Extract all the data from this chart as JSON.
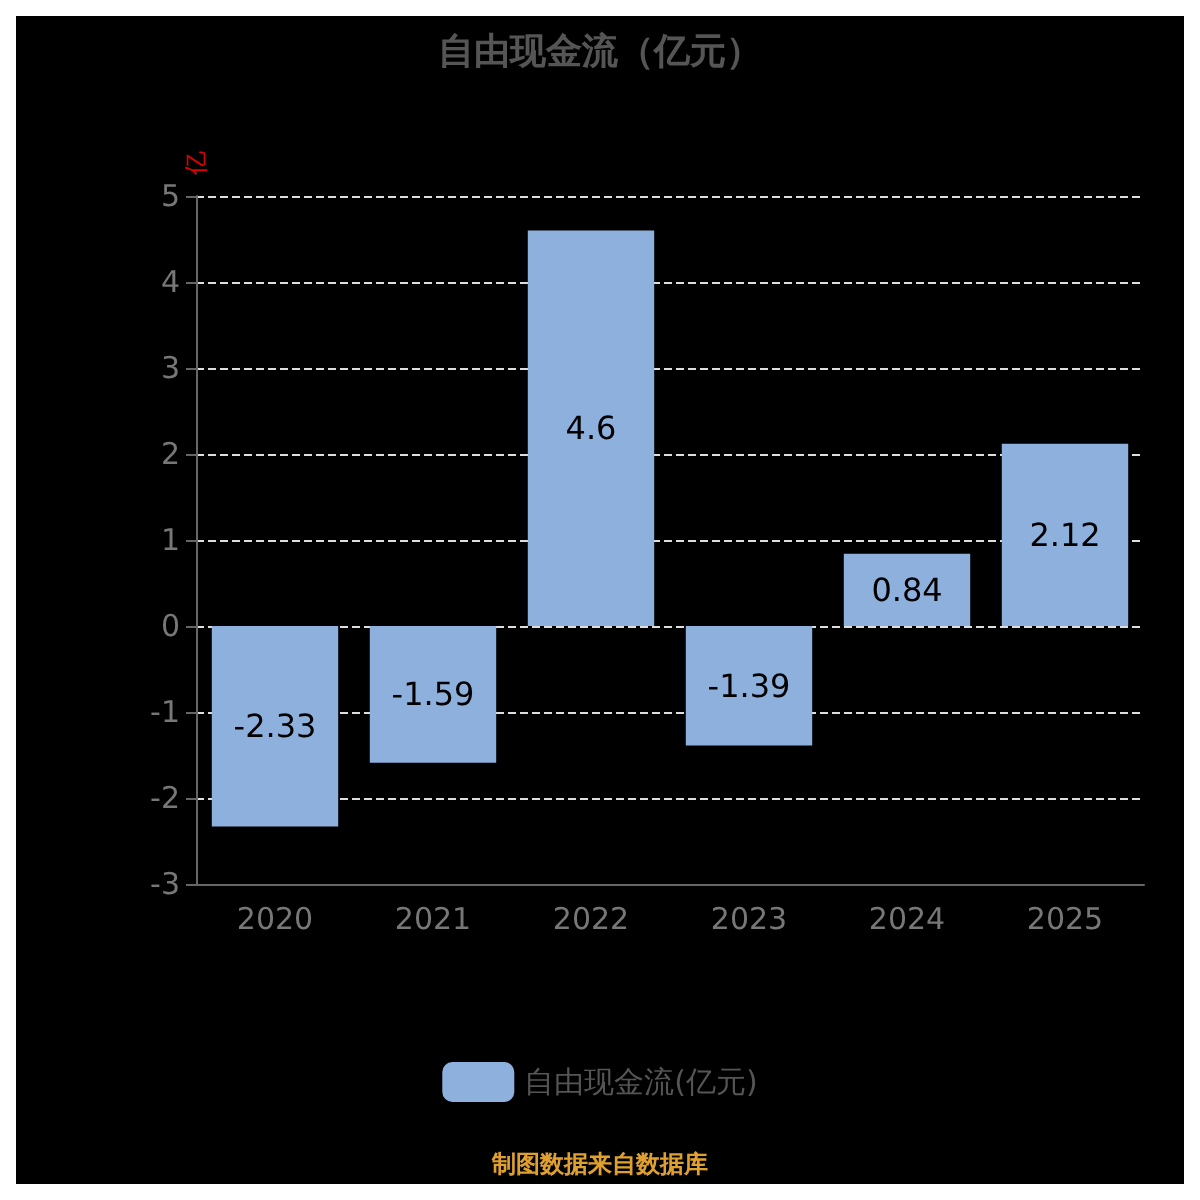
{
  "chart_data": {
    "type": "bar",
    "title": "自由现金流（亿元）",
    "ylabel": "亿",
    "categories": [
      "2020",
      "2021",
      "2022",
      "2023",
      "2024",
      "2025"
    ],
    "series": [
      {
        "name": "自由现金流(亿元)",
        "color": "#8eb0dd",
        "values": [
          -2.33,
          -1.59,
          4.6,
          -1.39,
          0.84,
          2.12
        ]
      }
    ],
    "ylim": [
      -3,
      5
    ],
    "yticks": [
      -3,
      -2,
      -1,
      0,
      1,
      2,
      3,
      4,
      5
    ],
    "grid": "y",
    "data_labels": true,
    "legend": "bottom",
    "annotations": [
      "制图数据来自数据库"
    ]
  }
}
